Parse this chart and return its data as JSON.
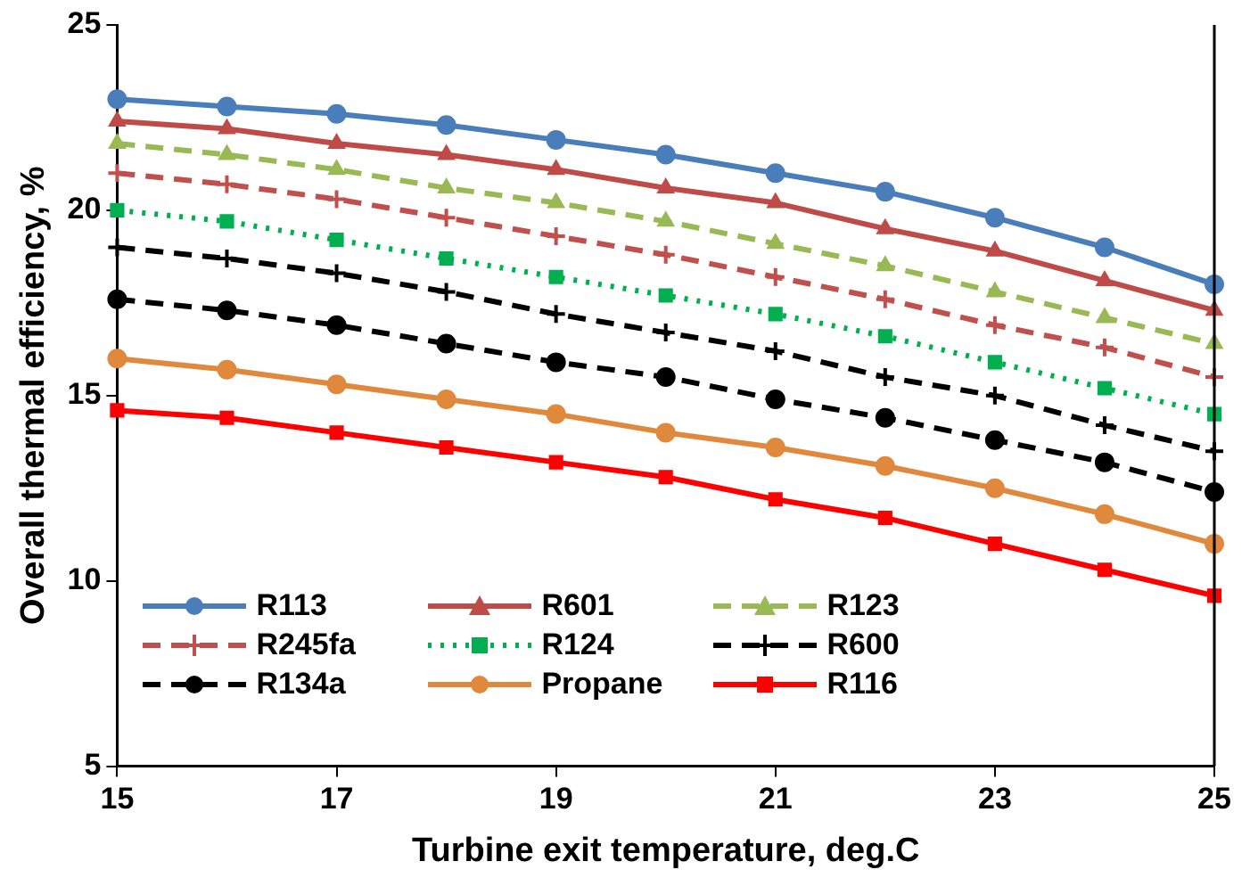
{
  "chart_data": {
    "type": "line",
    "xlabel": "Turbine exit temperature, deg.C",
    "ylabel": "Overall thermal efficiency, %",
    "x": [
      15,
      16,
      17,
      18,
      19,
      20,
      21,
      22,
      23,
      24,
      25
    ],
    "xlim": [
      15,
      25
    ],
    "xticks": [
      15,
      17,
      19,
      21,
      23,
      25
    ],
    "ylim": [
      5,
      25
    ],
    "yticks": [
      5,
      10,
      15,
      20,
      25
    ],
    "grid": false,
    "legend": "bottom left",
    "series": [
      {
        "name": "R113",
        "color": "#4a7ebb",
        "marker": "circle",
        "line_style": "solid",
        "values": [
          23.0,
          22.8,
          22.6,
          22.3,
          21.9,
          21.5,
          21.0,
          20.5,
          19.8,
          19.0,
          18.0
        ]
      },
      {
        "name": "R601",
        "color": "#be4b48",
        "marker": "triangle",
        "line_style": "solid",
        "values": [
          22.4,
          22.2,
          21.8,
          21.5,
          21.1,
          20.6,
          20.2,
          19.5,
          18.9,
          18.1,
          17.3
        ]
      },
      {
        "name": "R123",
        "color": "#98b954",
        "marker": "triangle",
        "line_style": "dashed",
        "values": [
          21.8,
          21.5,
          21.1,
          20.6,
          20.2,
          19.7,
          19.1,
          18.5,
          17.8,
          17.1,
          16.4
        ]
      },
      {
        "name": "R245fa",
        "color": "#c0504d",
        "marker": "cross",
        "line_style": "dashed",
        "values": [
          21.0,
          20.7,
          20.3,
          19.8,
          19.3,
          18.8,
          18.2,
          17.6,
          16.9,
          16.3,
          15.5
        ]
      },
      {
        "name": "R124",
        "color": "#00b050",
        "marker": "square",
        "line_style": "dotted",
        "values": [
          20.0,
          19.7,
          19.2,
          18.7,
          18.2,
          17.7,
          17.2,
          16.6,
          15.9,
          15.2,
          14.5
        ]
      },
      {
        "name": "R600",
        "color": "#000000",
        "marker": "cross",
        "line_style": "dashed",
        "values": [
          19.0,
          18.7,
          18.3,
          17.8,
          17.2,
          16.7,
          16.2,
          15.5,
          15.0,
          14.2,
          13.5
        ]
      },
      {
        "name": "R134a",
        "color": "#000000",
        "marker": "circle",
        "line_style": "dashed",
        "values": [
          17.6,
          17.3,
          16.9,
          16.4,
          15.9,
          15.5,
          14.9,
          14.4,
          13.8,
          13.2,
          12.4
        ]
      },
      {
        "name": "Propane",
        "color": "#e0883c",
        "marker": "circle",
        "line_style": "solid",
        "values": [
          16.0,
          15.7,
          15.3,
          14.9,
          14.5,
          14.0,
          13.6,
          13.1,
          12.5,
          11.8,
          11.0
        ]
      },
      {
        "name": "R116",
        "color": "#ff0000",
        "marker": "square",
        "line_style": "solid",
        "values": [
          14.6,
          14.4,
          14.0,
          13.6,
          13.2,
          12.8,
          12.2,
          11.7,
          11.0,
          10.3,
          9.6
        ]
      }
    ]
  }
}
